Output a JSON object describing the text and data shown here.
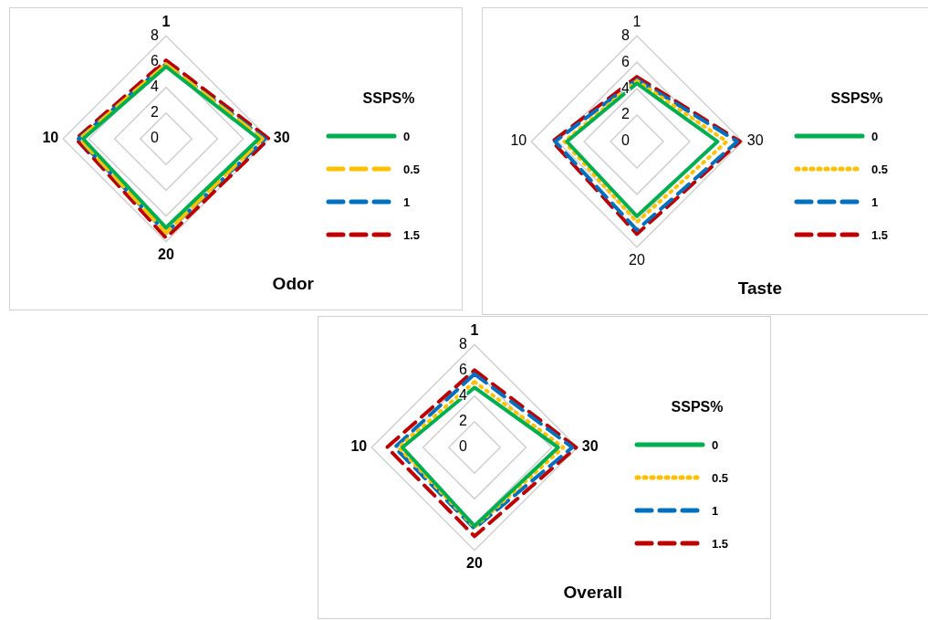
{
  "chart_data": [
    {
      "type": "radar",
      "title": "Odor",
      "legend_title": "SSPS%",
      "categories": [
        "1",
        "30",
        "20",
        "10"
      ],
      "ylim": [
        0,
        8
      ],
      "yticks": [
        0,
        2,
        4,
        6,
        8
      ],
      "grid": true,
      "legend": "right",
      "series": [
        {
          "name": "0",
          "color": "#00b050",
          "line_style": "solid",
          "values": [
            5.6,
            7.2,
            6.9,
            6.45
          ]
        },
        {
          "name": "0.5",
          "color": "#ffc000",
          "line_style": "dashed",
          "values": [
            5.8,
            7.5,
            7.3,
            6.7
          ]
        },
        {
          "name": "1",
          "color": "#0070c0",
          "line_style": "dashed",
          "values": [
            5.8,
            7.7,
            7.3,
            6.8
          ]
        },
        {
          "name": "1.5",
          "color": "#c00000",
          "line_style": "dashed",
          "values": [
            6.1,
            8,
            7.7,
            7
          ]
        }
      ]
    },
    {
      "type": "radar",
      "title": "Taste",
      "legend_title": "SSPS%",
      "categories": [
        "1",
        "30",
        "20",
        "10"
      ],
      "ylim": [
        0,
        8
      ],
      "yticks": [
        0,
        2,
        4,
        6,
        8
      ],
      "grid": true,
      "legend": "right",
      "series": [
        {
          "name": "0",
          "color": "#00b050",
          "line_style": "solid",
          "values": [
            4.4,
            6.1,
            5.65,
            5.3
          ]
        },
        {
          "name": "0.5",
          "color": "#ffc000",
          "line_style": "dotted",
          "values": [
            4.6,
            6.8,
            6.1,
            5.5
          ]
        },
        {
          "name": "1",
          "color": "#0070c0",
          "line_style": "dashed",
          "values": [
            4.7,
            7.6,
            6.7,
            6.2
          ]
        },
        {
          "name": "1.5",
          "color": "#c00000",
          "line_style": "dashed",
          "values": [
            4.9,
            7.8,
            7,
            6.4
          ]
        }
      ]
    },
    {
      "type": "radar",
      "title": "Overall",
      "legend_title": "SSPS%",
      "categories": [
        "1",
        "30",
        "20",
        "10"
      ],
      "ylim": [
        0,
        8
      ],
      "yticks": [
        0,
        2,
        4,
        6,
        8
      ],
      "grid": true,
      "legend": "right",
      "series": [
        {
          "name": "0",
          "color": "#00b050",
          "line_style": "solid",
          "values": [
            4.65,
            6.5,
            6.1,
            5.6
          ]
        },
        {
          "name": "0.5",
          "color": "#ffc000",
          "line_style": "dotted",
          "values": [
            5.1,
            6.9,
            6.2,
            5.9
          ]
        },
        {
          "name": "1",
          "color": "#0070c0",
          "line_style": "dashed",
          "values": [
            5.7,
            7.6,
            6.3,
            6.2
          ]
        },
        {
          "name": "1.5",
          "color": "#c00000",
          "line_style": "dashed",
          "values": [
            6,
            7.9,
            6.9,
            6.8
          ]
        }
      ]
    }
  ]
}
